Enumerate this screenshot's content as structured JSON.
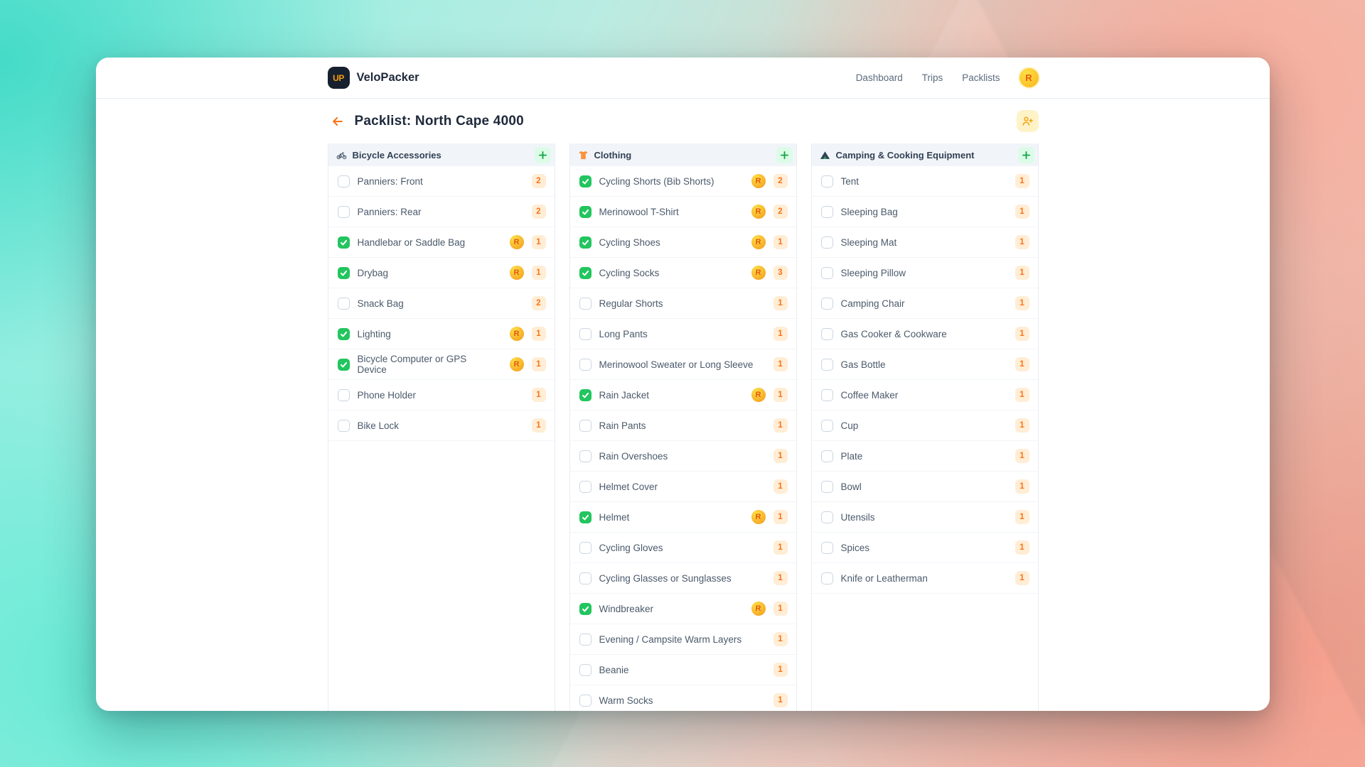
{
  "app": {
    "logo_text": "UP",
    "name": "VeloPacker",
    "nav": [
      {
        "label": "Dashboard"
      },
      {
        "label": "Trips"
      },
      {
        "label": "Packlists"
      }
    ],
    "user_initial": "R"
  },
  "page": {
    "title": "Packlist: North Cape 4000"
  },
  "colors": {
    "accent_orange": "#f97316",
    "qty_badge_bg": "#ffedd5",
    "checked_green": "#22c55e",
    "add_button_green_bg": "#dcfce7",
    "avatar_yellow": "#fbbf24",
    "column_header_gray": "#f1f5f9",
    "logo_navy": "#16202e"
  },
  "board": {
    "columns": [
      {
        "icon": "bicycle-icon",
        "title": "Bicycle Accessories",
        "items": [
          {
            "label": "Panniers: Front",
            "checked": false,
            "assignee": null,
            "qty": 2
          },
          {
            "label": "Panniers: Rear",
            "checked": false,
            "assignee": null,
            "qty": 2
          },
          {
            "label": "Handlebar or Saddle Bag",
            "checked": true,
            "assignee": "R",
            "qty": 1
          },
          {
            "label": "Drybag",
            "checked": true,
            "assignee": "R",
            "qty": 1
          },
          {
            "label": "Snack Bag",
            "checked": false,
            "assignee": null,
            "qty": 2
          },
          {
            "label": "Lighting",
            "checked": true,
            "assignee": "R",
            "qty": 1
          },
          {
            "label": "Bicycle Computer or GPS Device",
            "checked": true,
            "assignee": "R",
            "qty": 1
          },
          {
            "label": "Phone Holder",
            "checked": false,
            "assignee": null,
            "qty": 1
          },
          {
            "label": "Bike Lock",
            "checked": false,
            "assignee": null,
            "qty": 1
          }
        ]
      },
      {
        "icon": "tshirt-icon",
        "title": "Clothing",
        "items": [
          {
            "label": "Cycling Shorts (Bib Shorts)",
            "checked": true,
            "assignee": "R",
            "qty": 2
          },
          {
            "label": "Merinowool T-Shirt",
            "checked": true,
            "assignee": "R",
            "qty": 2
          },
          {
            "label": "Cycling Shoes",
            "checked": true,
            "assignee": "R",
            "qty": 1
          },
          {
            "label": "Cycling Socks",
            "checked": true,
            "assignee": "R",
            "qty": 3
          },
          {
            "label": "Regular Shorts",
            "checked": false,
            "assignee": null,
            "qty": 1
          },
          {
            "label": "Long Pants",
            "checked": false,
            "assignee": null,
            "qty": 1
          },
          {
            "label": "Merinowool Sweater or Long Sleeve",
            "checked": false,
            "assignee": null,
            "qty": 1
          },
          {
            "label": "Rain Jacket",
            "checked": true,
            "assignee": "R",
            "qty": 1
          },
          {
            "label": "Rain Pants",
            "checked": false,
            "assignee": null,
            "qty": 1
          },
          {
            "label": "Rain Overshoes",
            "checked": false,
            "assignee": null,
            "qty": 1
          },
          {
            "label": "Helmet Cover",
            "checked": false,
            "assignee": null,
            "qty": 1
          },
          {
            "label": "Helmet",
            "checked": true,
            "assignee": "R",
            "qty": 1
          },
          {
            "label": "Cycling Gloves",
            "checked": false,
            "assignee": null,
            "qty": 1
          },
          {
            "label": "Cycling Glasses or Sunglasses",
            "checked": false,
            "assignee": null,
            "qty": 1
          },
          {
            "label": "Windbreaker",
            "checked": true,
            "assignee": "R",
            "qty": 1
          },
          {
            "label": "Evening / Campsite Warm Layers",
            "checked": false,
            "assignee": null,
            "qty": 1
          },
          {
            "label": "Beanie",
            "checked": false,
            "assignee": null,
            "qty": 1
          },
          {
            "label": "Warm Socks",
            "checked": false,
            "assignee": null,
            "qty": 1
          }
        ]
      },
      {
        "icon": "tent-icon",
        "title": "Camping & Cooking Equipment",
        "items": [
          {
            "label": "Tent",
            "checked": false,
            "assignee": null,
            "qty": 1
          },
          {
            "label": "Sleeping Bag",
            "checked": false,
            "assignee": null,
            "qty": 1
          },
          {
            "label": "Sleeping Mat",
            "checked": false,
            "assignee": null,
            "qty": 1
          },
          {
            "label": "Sleeping Pillow",
            "checked": false,
            "assignee": null,
            "qty": 1
          },
          {
            "label": "Camping Chair",
            "checked": false,
            "assignee": null,
            "qty": 1
          },
          {
            "label": "Gas Cooker & Cookware",
            "checked": false,
            "assignee": null,
            "qty": 1
          },
          {
            "label": "Gas Bottle",
            "checked": false,
            "assignee": null,
            "qty": 1
          },
          {
            "label": "Coffee Maker",
            "checked": false,
            "assignee": null,
            "qty": 1
          },
          {
            "label": "Cup",
            "checked": false,
            "assignee": null,
            "qty": 1
          },
          {
            "label": "Plate",
            "checked": false,
            "assignee": null,
            "qty": 1
          },
          {
            "label": "Bowl",
            "checked": false,
            "assignee": null,
            "qty": 1
          },
          {
            "label": "Utensils",
            "checked": false,
            "assignee": null,
            "qty": 1
          },
          {
            "label": "Spices",
            "checked": false,
            "assignee": null,
            "qty": 1
          },
          {
            "label": "Knife or Leatherman",
            "checked": false,
            "assignee": null,
            "qty": 1
          }
        ]
      }
    ]
  }
}
